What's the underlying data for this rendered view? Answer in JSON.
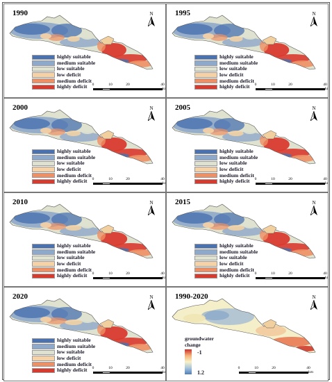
{
  "panels": [
    {
      "title": "1990",
      "type": "classes"
    },
    {
      "title": "1995",
      "type": "classes"
    },
    {
      "title": "2000",
      "type": "classes"
    },
    {
      "title": "2005",
      "type": "classes"
    },
    {
      "title": "2010",
      "type": "classes"
    },
    {
      "title": "2015",
      "type": "classes"
    },
    {
      "title": "2020",
      "type": "classes"
    },
    {
      "title": "1990-2020",
      "type": "change"
    }
  ],
  "legend": [
    {
      "label": "highly suitable",
      "color": "#4a72b0"
    },
    {
      "label": "medium suitable",
      "color": "#8ea9c9"
    },
    {
      "label": "low suitable",
      "color": "#dfe2cf"
    },
    {
      "label": "low deficit",
      "color": "#f6d2a4"
    },
    {
      "label": "medium deficit",
      "color": "#ee9063"
    },
    {
      "label": "highly deficit",
      "color": "#d93a2e"
    }
  ],
  "north_label": "N",
  "scale": {
    "ticks": [
      "0",
      "10",
      "20",
      "40"
    ],
    "unit": "km"
  },
  "change_legend": {
    "title_line1": "groundwater",
    "title_line2": "change",
    "max_label": "-1",
    "min_label": "1.2"
  }
}
